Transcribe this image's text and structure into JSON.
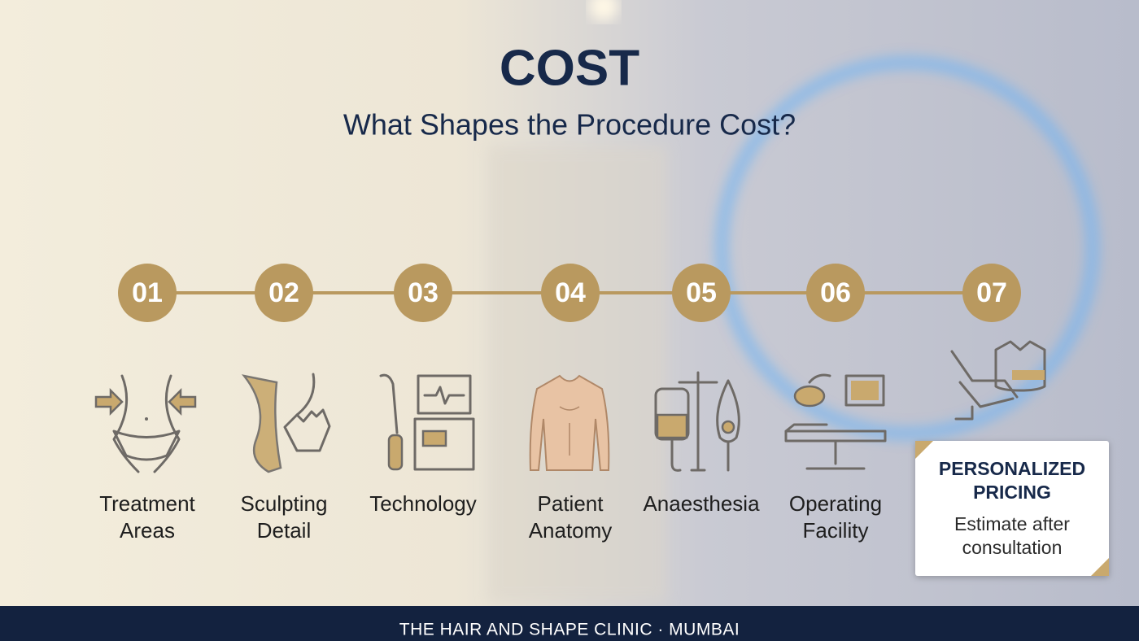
{
  "header": {
    "title": "COST",
    "subtitle": "What Shapes the Procedure Cost?"
  },
  "steps": [
    {
      "number": "01",
      "label": [
        "Treatment",
        "Areas"
      ]
    },
    {
      "number": "02",
      "label": [
        "Sculpting",
        "Detail"
      ]
    },
    {
      "number": "03",
      "label": [
        "Technology"
      ]
    },
    {
      "number": "04",
      "label": [
        "Patient",
        "Anatomy"
      ]
    },
    {
      "number": "05",
      "label": [
        "Anaesthesia"
      ]
    },
    {
      "number": "06",
      "label": [
        "Operating",
        "Facility"
      ]
    },
    {
      "number": "07",
      "label": []
    }
  ],
  "card": {
    "title": [
      "PERSONALIZED",
      "PRICING"
    ],
    "text": [
      "Estimate after",
      "consultation"
    ]
  },
  "footer": "THE HAIR AND SHAPE CLINIC · MUMBAI"
}
